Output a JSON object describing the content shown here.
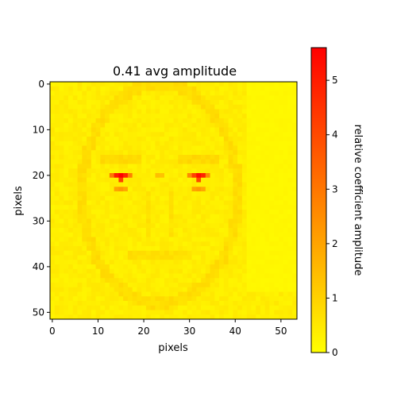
{
  "chart_data": {
    "type": "heatmap",
    "title": "0.41 avg amplitude",
    "xlabel": "pixels",
    "ylabel": "pixels",
    "colorbar_label": "relative coefficient amplitude",
    "colormap": "autumn_r",
    "colormap_endpoints": [
      "#ffff00",
      "#ff0000"
    ],
    "grid": false,
    "x_range": [
      -0.5,
      53.5
    ],
    "y_range": [
      51.5,
      -0.5
    ],
    "x_ticks": [
      0,
      10,
      20,
      30,
      40,
      50
    ],
    "y_ticks": [
      0,
      10,
      20,
      30,
      40,
      50
    ],
    "colorbar_range": [
      0,
      5.6
    ],
    "colorbar_ticks": [
      0,
      1,
      2,
      3,
      4,
      5
    ],
    "grid_size": {
      "rows": 52,
      "cols": 54
    },
    "base_amplitude": 0.38,
    "right_region": {
      "col_from": 43,
      "row_to": 45,
      "value": 0.12
    },
    "features": [
      {
        "feature": "left eye",
        "row": 20,
        "col": 15,
        "amplitude": 5.6
      },
      {
        "feature": "left eye",
        "row": 20,
        "col": 14,
        "amplitude": 5.0
      },
      {
        "feature": "left eye",
        "row": 20,
        "col": 16,
        "amplitude": 4.8
      },
      {
        "feature": "left eye",
        "row": 21,
        "col": 15,
        "amplitude": 4.2
      },
      {
        "feature": "left eye",
        "row": 20,
        "col": 13,
        "amplitude": 3.0
      },
      {
        "feature": "left eye",
        "row": 20,
        "col": 17,
        "amplitude": 2.8
      },
      {
        "feature": "left eye",
        "row": 23,
        "col": 15,
        "amplitude": 2.2
      },
      {
        "feature": "left eye",
        "row": 23,
        "col": 14,
        "amplitude": 2.0
      },
      {
        "feature": "left eye",
        "row": 23,
        "col": 16,
        "amplitude": 1.9
      },
      {
        "feature": "right eye",
        "row": 20,
        "col": 32,
        "amplitude": 5.3
      },
      {
        "feature": "right eye",
        "row": 20,
        "col": 33,
        "amplitude": 4.8
      },
      {
        "feature": "right eye",
        "row": 20,
        "col": 31,
        "amplitude": 4.2
      },
      {
        "feature": "right eye",
        "row": 21,
        "col": 32,
        "amplitude": 4.0
      },
      {
        "feature": "right eye",
        "row": 20,
        "col": 30,
        "amplitude": 2.6
      },
      {
        "feature": "right eye",
        "row": 20,
        "col": 34,
        "amplitude": 2.6
      },
      {
        "feature": "right eye",
        "row": 23,
        "col": 32,
        "amplitude": 2.2
      },
      {
        "feature": "right eye",
        "row": 23,
        "col": 31,
        "amplitude": 2.0
      },
      {
        "feature": "right eye",
        "row": 23,
        "col": 33,
        "amplitude": 1.9
      },
      {
        "feature": "nose bridge",
        "row": 20,
        "col": 23,
        "amplitude": 1.4
      },
      {
        "feature": "nose bridge",
        "row": 20,
        "col": 24,
        "amplitude": 1.3
      }
    ]
  }
}
